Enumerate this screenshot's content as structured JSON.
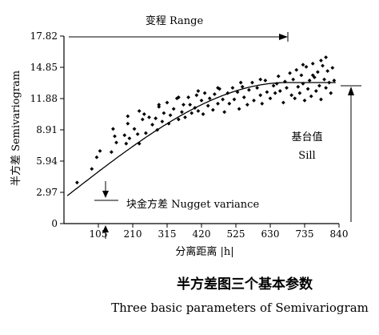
{
  "chart_data": {
    "type": "scatter",
    "title": "",
    "xlabel": "分离距离 |h|",
    "ylabel": "半方差 Semivariogram",
    "xlim": [
      0,
      840
    ],
    "ylim": [
      0,
      17.82
    ],
    "x_ticks": [
      105,
      210,
      315,
      420,
      525,
      630,
      735,
      840
    ],
    "x_tick_labels": [
      "105",
      "210",
      "315",
      "420",
      "525",
      "630",
      "735",
      "840"
    ],
    "y_ticks": [
      0,
      2.97,
      5.94,
      8.91,
      11.88,
      14.85,
      17.82
    ],
    "y_tick_labels": [
      "0",
      "2.97",
      "5.94",
      "8.91",
      "11.88",
      "14.85",
      "17.82"
    ],
    "grid": false,
    "legend": "none",
    "series": [
      {
        "kind": "scatter",
        "marker": "diamond",
        "points": [
          [
            40,
            3.9
          ],
          [
            85,
            5.2
          ],
          [
            100,
            6.3
          ],
          [
            110,
            6.9
          ],
          [
            145,
            6.8
          ],
          [
            150,
            9.0
          ],
          [
            155,
            8.3
          ],
          [
            160,
            7.7
          ],
          [
            185,
            8.4
          ],
          [
            190,
            7.6
          ],
          [
            195,
            9.5
          ],
          [
            200,
            8.1
          ],
          [
            215,
            9.0
          ],
          [
            225,
            8.5
          ],
          [
            230,
            7.6
          ],
          [
            240,
            9.9
          ],
          [
            245,
            10.4
          ],
          [
            250,
            8.6
          ],
          [
            260,
            10.1
          ],
          [
            270,
            9.4
          ],
          [
            280,
            10.0
          ],
          [
            285,
            8.9
          ],
          [
            290,
            11.3
          ],
          [
            300,
            9.7
          ],
          [
            305,
            10.5
          ],
          [
            315,
            11.5
          ],
          [
            320,
            9.5
          ],
          [
            325,
            10.3
          ],
          [
            335,
            10.9
          ],
          [
            345,
            11.9
          ],
          [
            350,
            9.9
          ],
          [
            360,
            10.6
          ],
          [
            365,
            11.3
          ],
          [
            370,
            10.1
          ],
          [
            380,
            12.0
          ],
          [
            385,
            11.3
          ],
          [
            390,
            10.5
          ],
          [
            400,
            11.0
          ],
          [
            405,
            12.2
          ],
          [
            410,
            10.7
          ],
          [
            420,
            11.7
          ],
          [
            425,
            10.4
          ],
          [
            430,
            12.4
          ],
          [
            440,
            11.2
          ],
          [
            445,
            11.9
          ],
          [
            455,
            10.8
          ],
          [
            460,
            12.3
          ],
          [
            470,
            11.4
          ],
          [
            475,
            12.8
          ],
          [
            485,
            11.8
          ],
          [
            490,
            10.6
          ],
          [
            500,
            12.4
          ],
          [
            505,
            11.4
          ],
          [
            515,
            12.9
          ],
          [
            520,
            11.8
          ],
          [
            530,
            12.5
          ],
          [
            535,
            10.9
          ],
          [
            545,
            13.0
          ],
          [
            550,
            12.0
          ],
          [
            560,
            11.3
          ],
          [
            565,
            12.7
          ],
          [
            575,
            13.4
          ],
          [
            580,
            11.7
          ],
          [
            590,
            12.9
          ],
          [
            600,
            12.2
          ],
          [
            605,
            11.4
          ],
          [
            615,
            13.6
          ],
          [
            620,
            12.5
          ],
          [
            630,
            11.9
          ],
          [
            640,
            13.1
          ],
          [
            645,
            12.4
          ],
          [
            655,
            14.0
          ],
          [
            660,
            12.6
          ],
          [
            670,
            11.5
          ],
          [
            675,
            13.5
          ],
          [
            680,
            12.9
          ],
          [
            690,
            14.3
          ],
          [
            695,
            12.2
          ],
          [
            700,
            13.7
          ],
          [
            705,
            11.9
          ],
          [
            710,
            14.6
          ],
          [
            715,
            13.0
          ],
          [
            720,
            12.4
          ],
          [
            725,
            14.1
          ],
          [
            730,
            13.3
          ],
          [
            735,
            11.7
          ],
          [
            740,
            14.9
          ],
          [
            745,
            12.8
          ],
          [
            750,
            13.6
          ],
          [
            755,
            12.1
          ],
          [
            760,
            15.2
          ],
          [
            765,
            13.9
          ],
          [
            770,
            12.6
          ],
          [
            775,
            14.4
          ],
          [
            780,
            13.1
          ],
          [
            785,
            11.8
          ],
          [
            790,
            15.0
          ],
          [
            795,
            13.7
          ],
          [
            800,
            12.9
          ],
          [
            805,
            14.5
          ],
          [
            810,
            13.4
          ],
          [
            815,
            12.4
          ],
          [
            820,
            14.8
          ],
          [
            825,
            13.6
          ],
          [
            760,
            14.1
          ],
          [
            785,
            15.5
          ],
          [
            800,
            15.8
          ],
          [
            730,
            15.1
          ],
          [
            650,
            13.3
          ],
          [
            600,
            13.7
          ],
          [
            540,
            13.4
          ],
          [
            470,
            12.9
          ],
          [
            410,
            12.6
          ],
          [
            350,
            12.0
          ],
          [
            290,
            11.1
          ],
          [
            230,
            10.7
          ],
          [
            195,
            10.2
          ]
        ]
      },
      {
        "kind": "curve",
        "model": "spherical",
        "nugget": 2.4,
        "sill": 13.4,
        "range": 680
      }
    ],
    "annotations": {
      "range_label": "变程 Range",
      "nugget_label": "块金方差 Nugget variance",
      "sill_label_cn": "基台值",
      "sill_label_en": "Sill"
    }
  },
  "caption": {
    "chinese": "半方差图三个基本参数",
    "english": "Three basic parameters of Semivariogram"
  }
}
